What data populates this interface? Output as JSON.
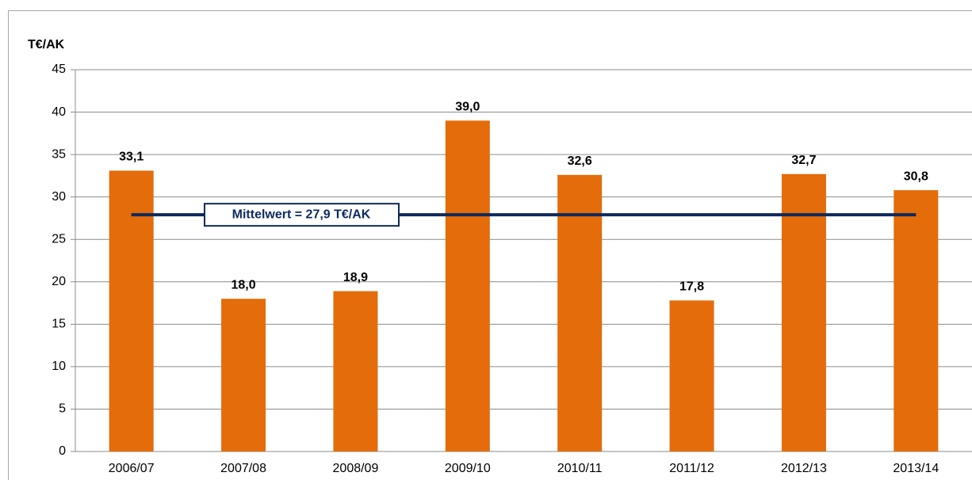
{
  "chart_data": {
    "type": "bar",
    "ylabel": "T€/AK",
    "categories": [
      "2006/07",
      "2007/08",
      "2008/09",
      "2009/10",
      "2010/11",
      "2011/12",
      "2012/13",
      "2013/14"
    ],
    "values": [
      33.1,
      18.0,
      18.9,
      39.0,
      32.6,
      17.8,
      32.7,
      30.8
    ],
    "value_labels": [
      "33,1",
      "18,0",
      "18,9",
      "39,0",
      "32,6",
      "17,8",
      "32,7",
      "30,8"
    ],
    "color": "#e46c0a",
    "ylim": [
      0,
      45
    ],
    "yticks": [
      0,
      5,
      10,
      15,
      20,
      25,
      30,
      35,
      40,
      45
    ],
    "grid": true,
    "mean": {
      "value": 27.9,
      "label": "Mittelwert = 27,9 T€/AK",
      "color": "#0d2a5e"
    }
  }
}
